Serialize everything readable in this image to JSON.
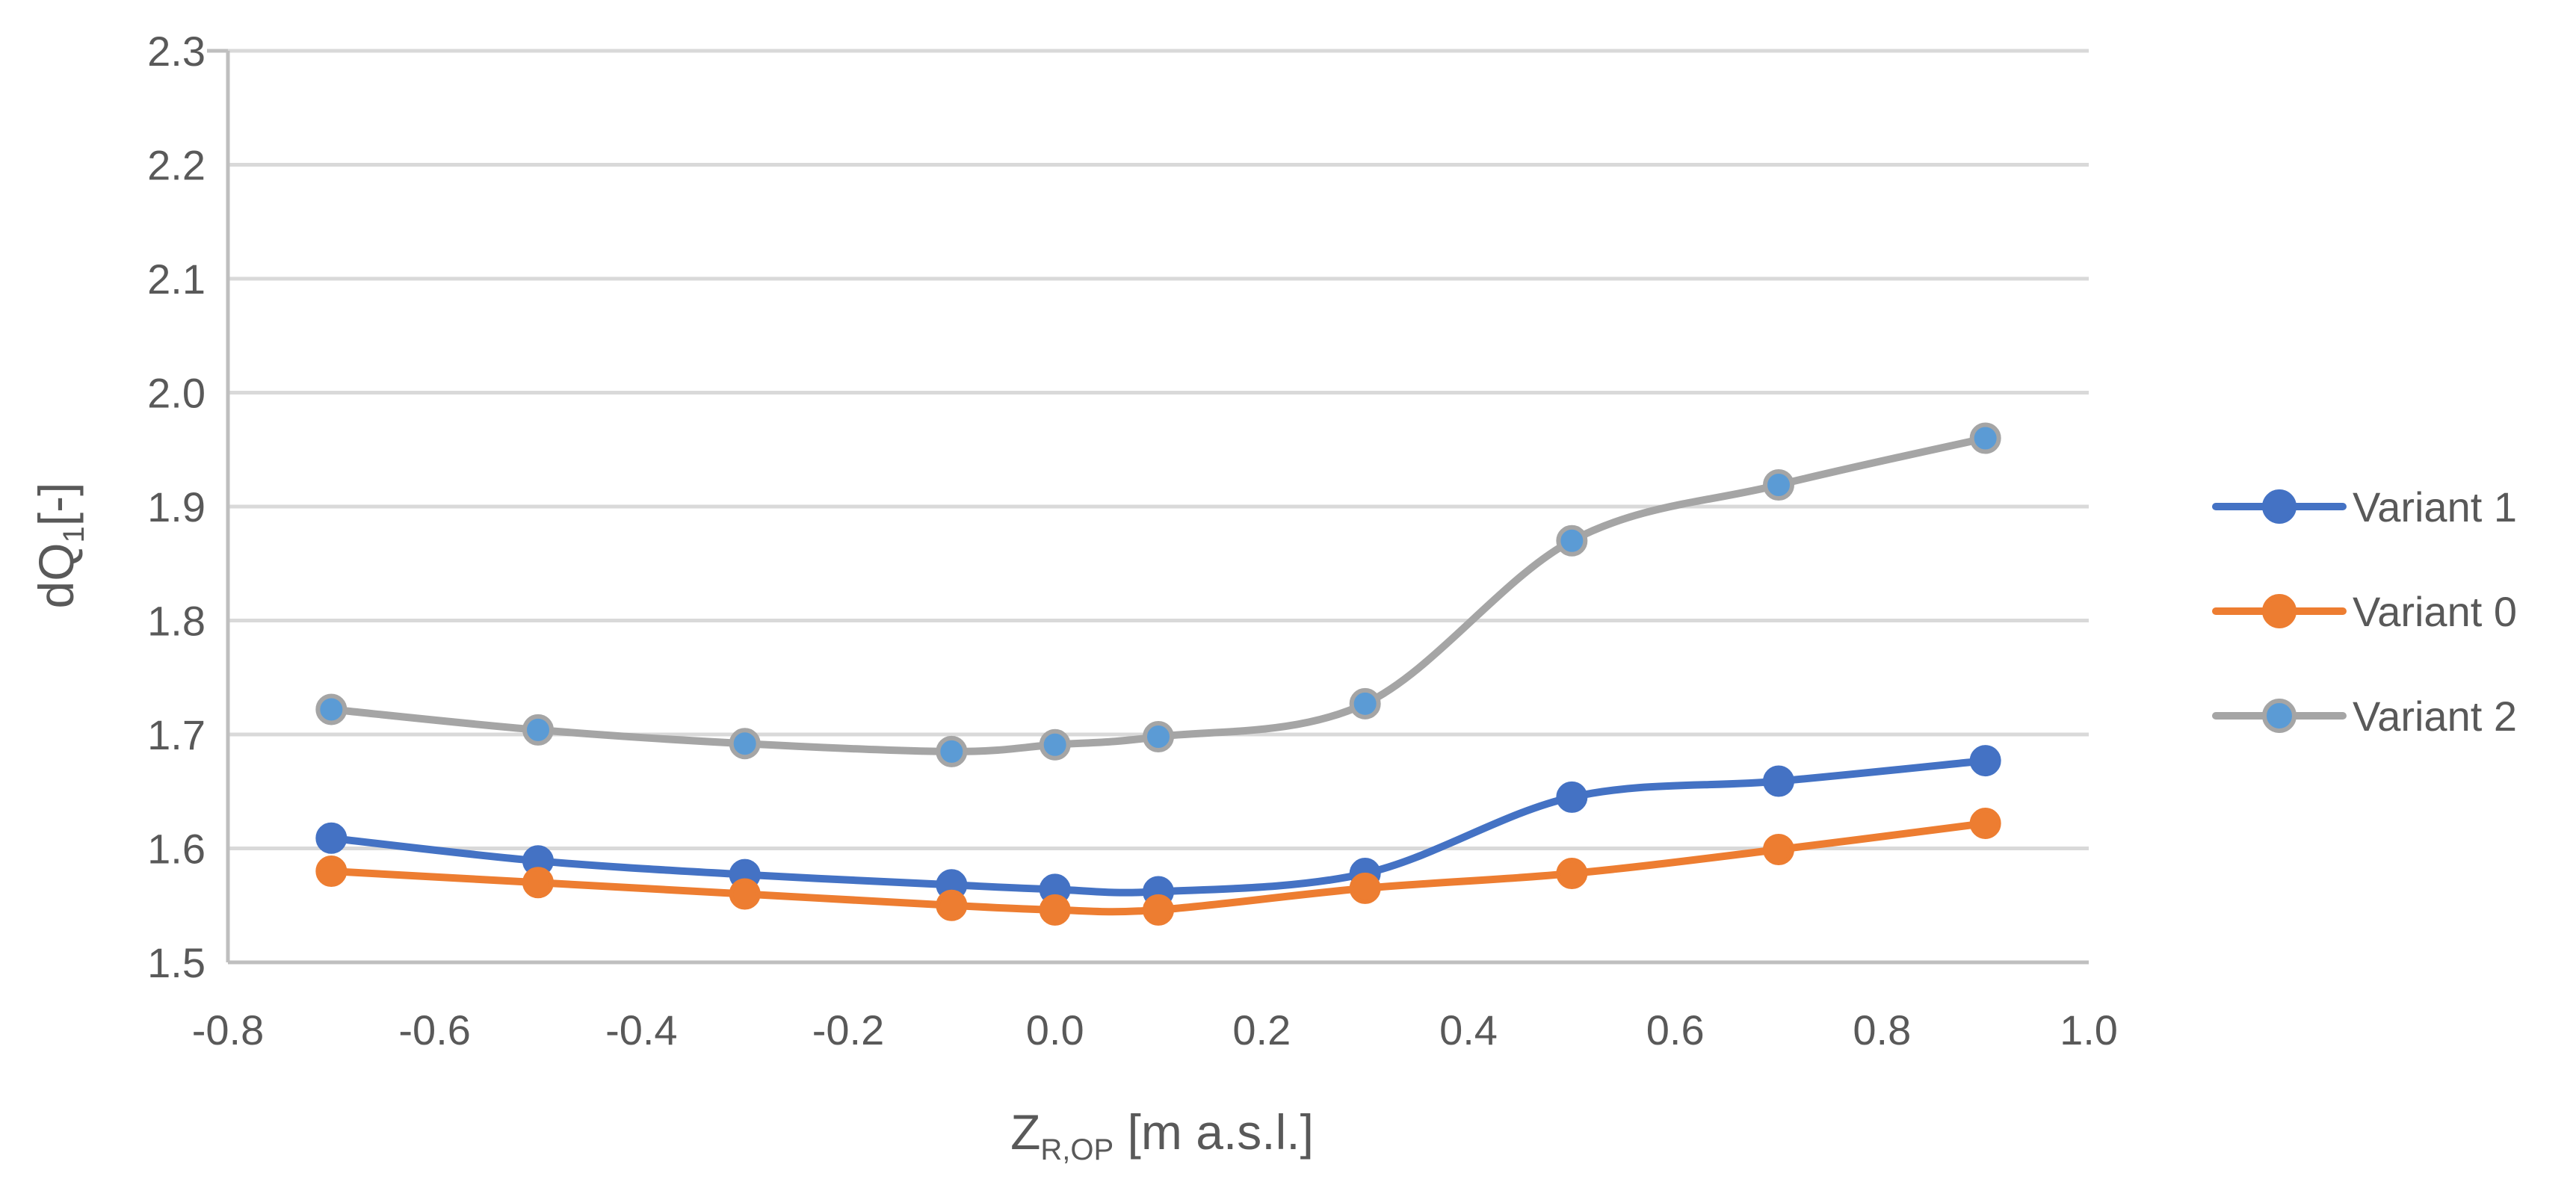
{
  "chart_data": {
    "type": "line",
    "title": "",
    "xlabel": {
      "main": "Z",
      "sub": "R,OP",
      "unit": " [m a.s.l.]"
    },
    "ylabel": {
      "main": "dQ",
      "sub": "1",
      "unit": "[-]"
    },
    "xlim": [
      -0.8,
      1.0
    ],
    "ylim": [
      1.5,
      2.3
    ],
    "x_ticks": [
      -0.8,
      -0.6,
      -0.4,
      -0.2,
      0.0,
      0.2,
      0.4,
      0.6,
      0.8,
      1.0
    ],
    "x_tick_labels": [
      "-0.8",
      "-0.6",
      "-0.4",
      "-0.2",
      "0.0",
      "0.2",
      "0.4",
      "0.6",
      "0.8",
      "1.0"
    ],
    "y_ticks": [
      1.5,
      1.6,
      1.7,
      1.8,
      1.9,
      2.0,
      2.1,
      2.2,
      2.3
    ],
    "y_tick_labels": [
      "1.5",
      "1.6",
      "1.7",
      "1.8",
      "1.9",
      "2.0",
      "2.1",
      "2.2",
      "2.3"
    ],
    "grid": "horizontal",
    "legend_position": "right",
    "x": [
      -0.7,
      -0.5,
      -0.3,
      -0.1,
      0.0,
      0.1,
      0.3,
      0.5,
      0.7,
      0.9
    ],
    "series": [
      {
        "name": "Variant 1",
        "color": "#4472c4",
        "marker_fill": "#4472c4",
        "marker_stroke": "#4472c4",
        "values": [
          1.609,
          1.589,
          1.577,
          1.568,
          1.564,
          1.562,
          1.578,
          1.645,
          1.659,
          1.677
        ]
      },
      {
        "name": "Variant 0",
        "color": "#ed7d31",
        "marker_fill": "#ed7d31",
        "marker_stroke": "#ed7d31",
        "values": [
          1.58,
          1.57,
          1.56,
          1.55,
          1.546,
          1.546,
          1.565,
          1.578,
          1.599,
          1.622
        ]
      },
      {
        "name": "Variant 2",
        "color": "#a5a5a5",
        "marker_fill": "#5b9bd5",
        "marker_stroke": "#a5a5a5",
        "values": [
          1.722,
          1.704,
          1.692,
          1.685,
          1.691,
          1.698,
          1.727,
          1.87,
          1.919,
          1.96
        ]
      }
    ]
  }
}
